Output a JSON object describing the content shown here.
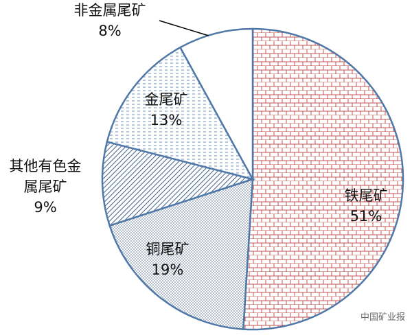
{
  "chart_data": {
    "type": "pie",
    "categories": [
      "铁尾矿",
      "铜尾矿",
      "其他有色金\n属尾矿",
      "金尾矿",
      "非金属尾矿"
    ],
    "values": [
      51,
      19,
      9,
      13,
      8
    ],
    "value_labels": [
      "51%",
      "19%",
      "9%",
      "13%",
      "8%"
    ],
    "colors": [
      "#c0504d",
      "#5b7396",
      "#3f5f8a",
      "#6b8cb0",
      "#ffffff"
    ],
    "edge_color": "#4f78a8",
    "watermark": "中国矿业报"
  }
}
